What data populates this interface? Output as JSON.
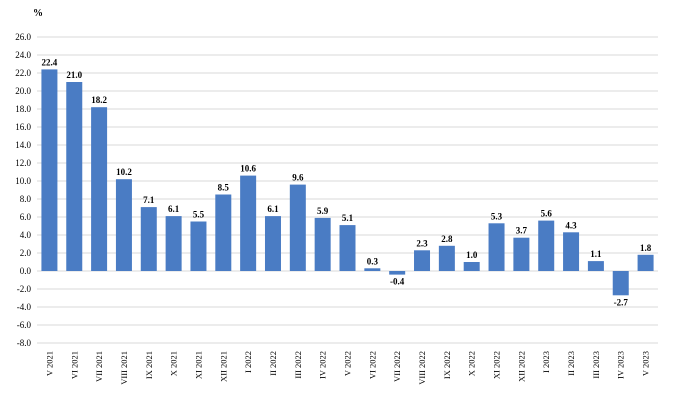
{
  "chart_data": {
    "type": "bar",
    "title": "",
    "ylabel": "%",
    "xlabel": "",
    "ylim": [
      -8.0,
      26.0
    ],
    "ytick_step": 2.0,
    "grid": true,
    "bar_color": "#4a7cc4",
    "grid_color": "#d9d9d9",
    "categories": [
      "V 2021",
      "VI 2021",
      "VII 2021",
      "VIII 2021",
      "IX 2021",
      "X 2021",
      "XI 2021",
      "XII 2021",
      "I 2022",
      "II 2022",
      "III 2022",
      "IV 2022",
      "V 2022",
      "VI 2022",
      "VII 2022",
      "VIII 2022",
      "IX 2022",
      "X 2022",
      "XI 2022",
      "XII 2022",
      "I 2023",
      "II 2023",
      "III 2023",
      "IV 2023",
      "V 2023"
    ],
    "values": [
      22.4,
      21.0,
      18.2,
      10.2,
      7.1,
      6.1,
      5.5,
      8.5,
      10.6,
      6.1,
      9.6,
      5.9,
      5.1,
      0.3,
      -0.4,
      2.3,
      2.8,
      1.0,
      5.3,
      3.7,
      5.6,
      4.3,
      1.1,
      -2.7,
      1.8
    ],
    "value_labels": [
      "22.4",
      "21.0",
      "18.2",
      "10.2",
      "7.1",
      "6.1",
      "5.5",
      "8.5",
      "10.6",
      "6.1",
      "9.6",
      "5.9",
      "5.1",
      "0.3",
      "-0.4",
      "2.3",
      "2.8",
      "1.0",
      "5.3",
      "3.7",
      "5.6",
      "4.3",
      "1.1",
      "-2.7",
      "1.8"
    ],
    "yticks": [
      "26.0",
      "24.0",
      "22.0",
      "20.0",
      "18.0",
      "16.0",
      "14.0",
      "12.0",
      "10.0",
      "8.0",
      "6.0",
      "4.0",
      "2.0",
      "0.0",
      "-2.0",
      "-4.0",
      "-6.0",
      "-8.0"
    ]
  }
}
